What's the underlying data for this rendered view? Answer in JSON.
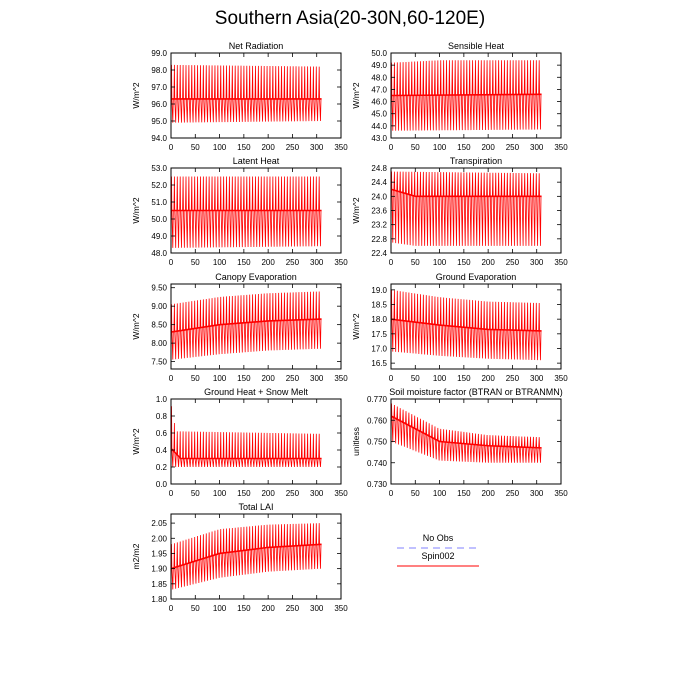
{
  "page_title": "Southern Asia(20-30N,60-120E)",
  "legend": {
    "entries": [
      {
        "name": "No Obs",
        "color": "#8080ff",
        "dashed": true
      },
      {
        "name": "Spin002",
        "color": "#ff0000",
        "dashed": false
      }
    ]
  },
  "chart_data": [
    {
      "type": "line",
      "title": "Net Radiation",
      "ylabel": "W/m^2",
      "xlim": [
        0,
        350
      ],
      "ylim": [
        94,
        99
      ],
      "xticks": [
        0,
        50,
        100,
        150,
        200,
        250,
        300,
        350
      ],
      "xtick_labels": [
        "0",
        "50",
        "100",
        "150",
        "200",
        "250",
        "300",
        "350"
      ],
      "yticks": [
        94,
        95,
        96,
        97,
        98,
        99
      ],
      "ytick_labels": [
        "94.0",
        "95.0",
        "96.0",
        "97.0",
        "98.0",
        "99.0"
      ],
      "series": [
        {
          "name": "Spin002",
          "color": "#ff0000",
          "x_range": [
            0,
            310
          ],
          "cycles": 52,
          "upper": [
            [
              0,
              98.3
            ],
            [
              310,
              98.2
            ]
          ],
          "lower": [
            [
              0,
              94.9
            ],
            [
              310,
              95.0
            ]
          ],
          "mean": [
            [
              0,
              96.3
            ],
            [
              310,
              96.3
            ]
          ]
        }
      ]
    },
    {
      "type": "line",
      "title": "Sensible Heat",
      "ylabel": "W/m^2",
      "xlim": [
        0,
        350
      ],
      "ylim": [
        43,
        50
      ],
      "xticks": [
        0,
        50,
        100,
        150,
        200,
        250,
        300,
        350
      ],
      "xtick_labels": [
        "0",
        "50",
        "100",
        "150",
        "200",
        "250",
        "300",
        "350"
      ],
      "yticks": [
        43,
        44,
        45,
        46,
        47,
        48,
        49,
        50
      ],
      "ytick_labels": [
        "43.0",
        "44.0",
        "45.0",
        "46.0",
        "47.0",
        "48.0",
        "49.0",
        "50.0"
      ],
      "series": [
        {
          "name": "Spin002",
          "color": "#ff0000",
          "x_range": [
            0,
            310
          ],
          "cycles": 52,
          "upper": [
            [
              0,
              49.2
            ],
            [
              100,
              49.4
            ],
            [
              310,
              49.4
            ]
          ],
          "lower": [
            [
              0,
              43.6
            ],
            [
              310,
              43.7
            ]
          ],
          "mean": [
            [
              0,
              46.5
            ],
            [
              310,
              46.6
            ]
          ]
        }
      ]
    },
    {
      "type": "line",
      "title": "Latent Heat",
      "ylabel": "W/m^2",
      "xlim": [
        0,
        350
      ],
      "ylim": [
        48,
        53
      ],
      "xticks": [
        0,
        50,
        100,
        150,
        200,
        250,
        300,
        350
      ],
      "xtick_labels": [
        "0",
        "50",
        "100",
        "150",
        "200",
        "250",
        "300",
        "350"
      ],
      "yticks": [
        48,
        49,
        50,
        51,
        52,
        53
      ],
      "ytick_labels": [
        "48.0",
        "49.0",
        "50.0",
        "51.0",
        "52.0",
        "53.0"
      ],
      "series": [
        {
          "name": "Spin002",
          "color": "#ff0000",
          "x_range": [
            0,
            310
          ],
          "cycles": 52,
          "upper": [
            [
              0,
              52.5
            ],
            [
              310,
              52.5
            ]
          ],
          "lower": [
            [
              0,
              48.3
            ],
            [
              310,
              48.4
            ]
          ],
          "mean": [
            [
              0,
              50.5
            ],
            [
              310,
              50.5
            ]
          ]
        }
      ]
    },
    {
      "type": "line",
      "title": "Transpiration",
      "ylabel": "W/m^2",
      "xlim": [
        0,
        350
      ],
      "ylim": [
        22.4,
        24.8
      ],
      "xticks": [
        0,
        50,
        100,
        150,
        200,
        250,
        300,
        350
      ],
      "xtick_labels": [
        "0",
        "50",
        "100",
        "150",
        "200",
        "250",
        "300",
        "350"
      ],
      "yticks": [
        22.4,
        22.8,
        23.2,
        23.6,
        24.0,
        24.4,
        24.8
      ],
      "ytick_labels": [
        "22.4",
        "22.8",
        "23.2",
        "23.6",
        "24.0",
        "24.4",
        "24.8"
      ],
      "series": [
        {
          "name": "Spin002",
          "color": "#ff0000",
          "x_range": [
            0,
            310
          ],
          "cycles": 52,
          "upper": [
            [
              0,
              24.7
            ],
            [
              310,
              24.65
            ]
          ],
          "lower": [
            [
              0,
              22.7
            ],
            [
              50,
              22.6
            ],
            [
              310,
              22.6
            ]
          ],
          "mean": [
            [
              0,
              24.2
            ],
            [
              50,
              24.0
            ],
            [
              310,
              24.0
            ]
          ]
        }
      ]
    },
    {
      "type": "line",
      "title": "Canopy Evaporation",
      "ylabel": "W/m^2",
      "xlim": [
        0,
        350
      ],
      "ylim": [
        7.3,
        9.6
      ],
      "xticks": [
        0,
        50,
        100,
        150,
        200,
        250,
        300,
        350
      ],
      "xtick_labels": [
        "0",
        "50",
        "100",
        "150",
        "200",
        "250",
        "300",
        "350"
      ],
      "yticks": [
        7.5,
        8.0,
        8.5,
        9.0,
        9.5
      ],
      "ytick_labels": [
        "7.50",
        "8.00",
        "8.50",
        "9.00",
        "9.50"
      ],
      "series": [
        {
          "name": "Spin002",
          "color": "#ff0000",
          "x_range": [
            0,
            310
          ],
          "cycles": 52,
          "upper": [
            [
              0,
              9.05
            ],
            [
              100,
              9.25
            ],
            [
              200,
              9.35
            ],
            [
              310,
              9.4
            ]
          ],
          "lower": [
            [
              0,
              7.55
            ],
            [
              100,
              7.7
            ],
            [
              200,
              7.8
            ],
            [
              310,
              7.85
            ]
          ],
          "mean": [
            [
              0,
              8.3
            ],
            [
              100,
              8.5
            ],
            [
              200,
              8.6
            ],
            [
              310,
              8.65
            ]
          ]
        }
      ]
    },
    {
      "type": "line",
      "title": "Ground Evaporation",
      "ylabel": "W/m^2",
      "xlim": [
        0,
        350
      ],
      "ylim": [
        16.3,
        19.2
      ],
      "xticks": [
        0,
        50,
        100,
        150,
        200,
        250,
        300,
        350
      ],
      "xtick_labels": [
        "0",
        "50",
        "100",
        "150",
        "200",
        "250",
        "300",
        "350"
      ],
      "yticks": [
        16.5,
        17.0,
        17.5,
        18.0,
        18.5,
        19.0
      ],
      "ytick_labels": [
        "16.5",
        "17.0",
        "17.5",
        "18.0",
        "18.5",
        "19.0"
      ],
      "series": [
        {
          "name": "Spin002",
          "color": "#ff0000",
          "x_range": [
            0,
            310
          ],
          "cycles": 52,
          "upper": [
            [
              0,
              19.0
            ],
            [
              100,
              18.75
            ],
            [
              200,
              18.6
            ],
            [
              310,
              18.55
            ]
          ],
          "lower": [
            [
              0,
              16.9
            ],
            [
              100,
              16.75
            ],
            [
              200,
              16.65
            ],
            [
              310,
              16.6
            ]
          ],
          "mean": [
            [
              0,
              18.0
            ],
            [
              100,
              17.8
            ],
            [
              200,
              17.65
            ],
            [
              310,
              17.6
            ]
          ]
        }
      ]
    },
    {
      "type": "line",
      "title": "Ground Heat + Snow Melt",
      "ylabel": "W/m^2",
      "xlim": [
        0,
        350
      ],
      "ylim": [
        0,
        1.0
      ],
      "xticks": [
        0,
        50,
        100,
        150,
        200,
        250,
        300,
        350
      ],
      "xtick_labels": [
        "0",
        "50",
        "100",
        "150",
        "200",
        "250",
        "300",
        "350"
      ],
      "yticks": [
        0,
        0.2,
        0.4,
        0.6,
        0.8,
        1.0
      ],
      "ytick_labels": [
        "0.0",
        "0.2",
        "0.4",
        "0.6",
        "0.8",
        "1.0"
      ],
      "series": [
        {
          "name": "Spin002",
          "color": "#ff0000",
          "x_range": [
            0,
            310
          ],
          "cycles": 52,
          "upper": [
            [
              0,
              0.95
            ],
            [
              10,
              0.62
            ],
            [
              310,
              0.59
            ]
          ],
          "lower": [
            [
              0,
              0.2
            ],
            [
              310,
              0.2
            ]
          ],
          "mean": [
            [
              0,
              0.42
            ],
            [
              20,
              0.3
            ],
            [
              310,
              0.3
            ]
          ]
        }
      ]
    },
    {
      "type": "line",
      "title": "Soil moisture factor (BTRAN or BTRANMN)",
      "ylabel": "unitless",
      "xlim": [
        0,
        350
      ],
      "ylim": [
        0.73,
        0.77
      ],
      "xticks": [
        0,
        50,
        100,
        150,
        200,
        250,
        300,
        350
      ],
      "xtick_labels": [
        "0",
        "50",
        "100",
        "150",
        "200",
        "250",
        "300",
        "350"
      ],
      "yticks": [
        0.73,
        0.74,
        0.75,
        0.76,
        0.77
      ],
      "ytick_labels": [
        "0.730",
        "0.740",
        "0.750",
        "0.760",
        "0.770"
      ],
      "series": [
        {
          "name": "Spin002",
          "color": "#ff0000",
          "x_range": [
            0,
            310
          ],
          "cycles": 52,
          "upper": [
            [
              0,
              0.768
            ],
            [
              100,
              0.756
            ],
            [
              200,
              0.753
            ],
            [
              310,
              0.752
            ]
          ],
          "lower": [
            [
              0,
              0.75
            ],
            [
              100,
              0.741
            ],
            [
              200,
              0.74
            ],
            [
              310,
              0.74
            ]
          ],
          "mean": [
            [
              0,
              0.762
            ],
            [
              100,
              0.75
            ],
            [
              200,
              0.748
            ],
            [
              310,
              0.747
            ]
          ]
        }
      ]
    },
    {
      "type": "line",
      "title": "Total LAI",
      "ylabel": "m2/m2",
      "xlim": [
        0,
        350
      ],
      "ylim": [
        1.8,
        2.08
      ],
      "xticks": [
        0,
        50,
        100,
        150,
        200,
        250,
        300,
        350
      ],
      "xtick_labels": [
        "0",
        "50",
        "100",
        "150",
        "200",
        "250",
        "300",
        "350"
      ],
      "yticks": [
        1.8,
        1.85,
        1.9,
        1.95,
        2.0,
        2.05
      ],
      "ytick_labels": [
        "1.80",
        "1.85",
        "1.90",
        "1.95",
        "2.00",
        "2.05"
      ],
      "series": [
        {
          "name": "Spin002",
          "color": "#ff0000",
          "x_range": [
            0,
            310
          ],
          "cycles": 52,
          "upper": [
            [
              0,
              1.98
            ],
            [
              100,
              2.03
            ],
            [
              200,
              2.045
            ],
            [
              310,
              2.05
            ]
          ],
          "lower": [
            [
              0,
              1.83
            ],
            [
              100,
              1.87
            ],
            [
              200,
              1.89
            ],
            [
              310,
              1.9
            ]
          ],
          "mean": [
            [
              0,
              1.9
            ],
            [
              100,
              1.95
            ],
            [
              200,
              1.97
            ],
            [
              310,
              1.98
            ]
          ]
        }
      ]
    }
  ]
}
